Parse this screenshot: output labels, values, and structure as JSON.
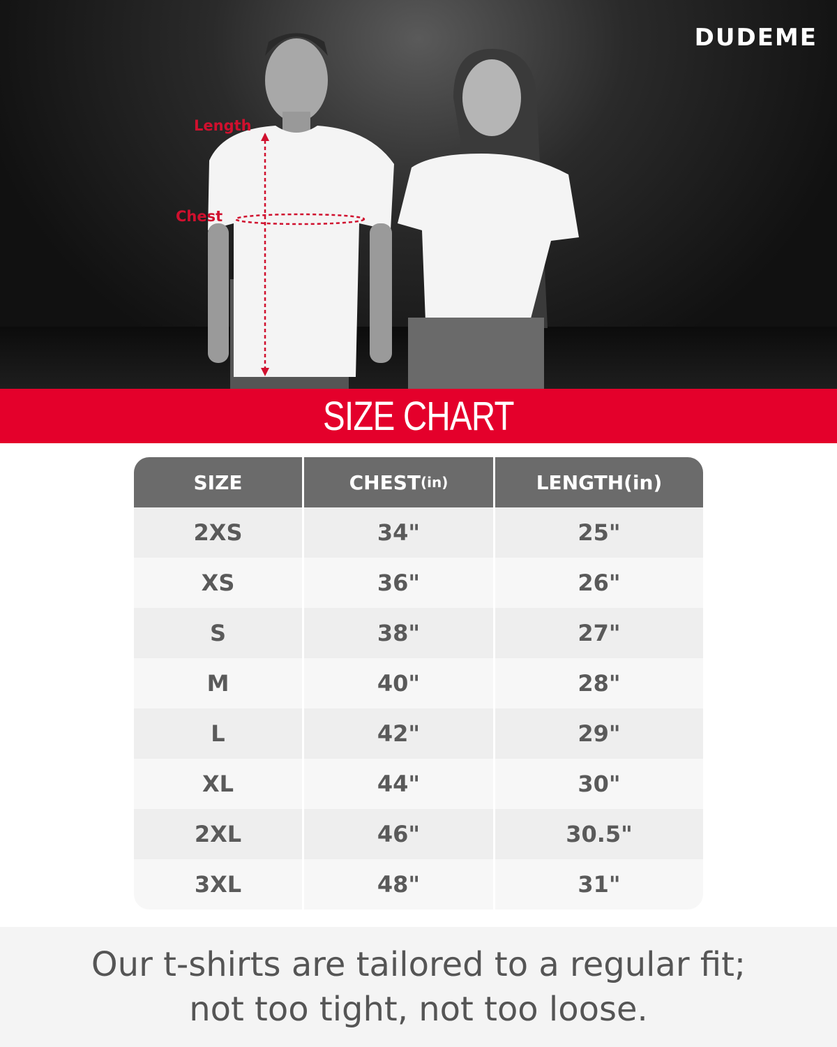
{
  "brand": {
    "logo_text": "DUDEME"
  },
  "photo": {
    "labels": {
      "length": "Length",
      "chest": "Chest"
    }
  },
  "banner": {
    "title": "SIZE CHART",
    "color": "#e4002b"
  },
  "table": {
    "headers": [
      {
        "main": "SIZE",
        "unit": ""
      },
      {
        "main": "CHEST",
        "unit": "(in)"
      },
      {
        "main": "LENGTH(in)",
        "unit": ""
      }
    ],
    "rows": [
      [
        "2XS",
        "34\"",
        "25\""
      ],
      [
        "XS",
        "36\"",
        "26\""
      ],
      [
        "S",
        "38\"",
        "27\""
      ],
      [
        "M",
        "40\"",
        "28\""
      ],
      [
        "L",
        "42\"",
        "29\""
      ],
      [
        "XL",
        "44\"",
        "30\""
      ],
      [
        "2XL",
        "46\"",
        "30.5\""
      ],
      [
        "3XL",
        "48\"",
        "31\""
      ]
    ]
  },
  "footer": {
    "line1": "Our t-shirts are tailored to a regular fit;",
    "line2": "not too tight, not too loose."
  }
}
